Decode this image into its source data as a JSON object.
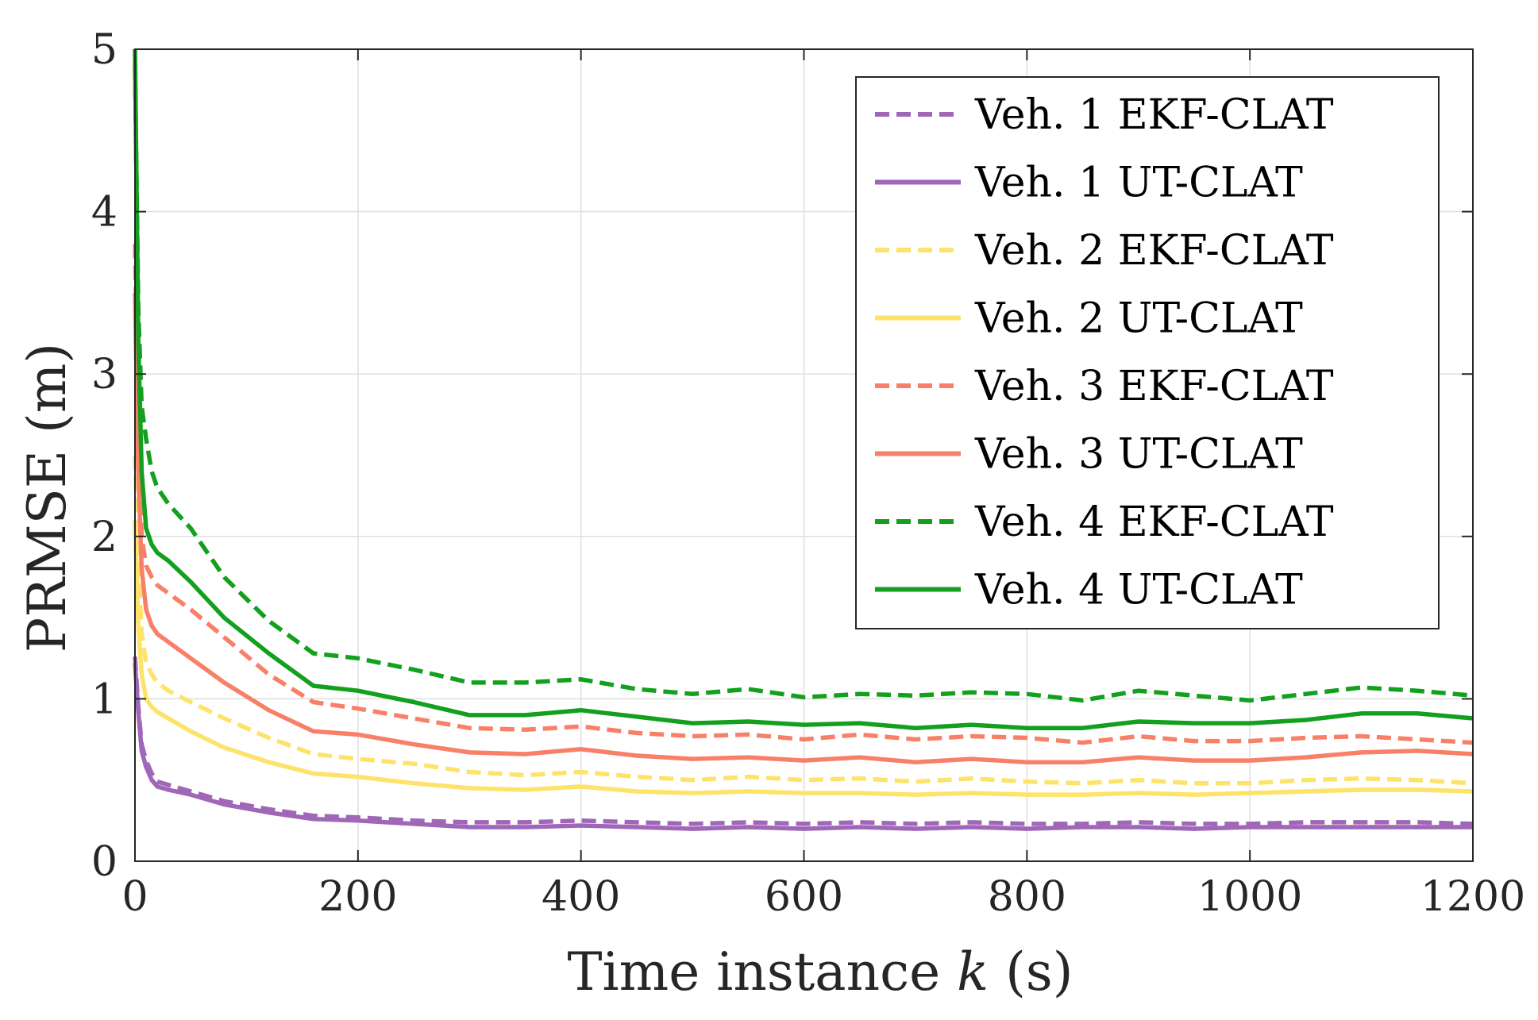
{
  "chart_data": {
    "type": "line",
    "title": "",
    "xlabel_parts": [
      "Time instance ",
      "k",
      " (s)"
    ],
    "ylabel": "PRMSE (m)",
    "xlim": [
      0,
      1200
    ],
    "ylim": [
      0,
      5
    ],
    "xticks": [
      0,
      200,
      400,
      600,
      800,
      1000,
      1200
    ],
    "xtick_labels": [
      "0",
      "200",
      "400",
      "600",
      "800",
      "1000",
      "1200"
    ],
    "yticks": [
      0,
      1,
      2,
      3,
      4,
      5
    ],
    "ytick_labels": [
      "0",
      "1",
      "2",
      "3",
      "4",
      "5"
    ],
    "grid": true,
    "legend_position": "top-right",
    "series": [
      {
        "name": "Veh. 1 EKF-CLAT",
        "color": "#a066b8",
        "dash": "dashed",
        "x": [
          0,
          3,
          6,
          10,
          15,
          20,
          30,
          50,
          80,
          120,
          160,
          200,
          250,
          300,
          350,
          400,
          450,
          500,
          550,
          600,
          650,
          700,
          750,
          800,
          850,
          900,
          950,
          1000,
          1050,
          1100,
          1150,
          1200
        ],
        "y": [
          1.26,
          0.95,
          0.72,
          0.62,
          0.54,
          0.49,
          0.47,
          0.43,
          0.37,
          0.32,
          0.28,
          0.27,
          0.25,
          0.24,
          0.24,
          0.25,
          0.24,
          0.23,
          0.24,
          0.23,
          0.24,
          0.23,
          0.24,
          0.23,
          0.23,
          0.24,
          0.23,
          0.23,
          0.24,
          0.24,
          0.24,
          0.23
        ]
      },
      {
        "name": "Veh. 1 UT-CLAT",
        "color": "#a066b8",
        "dash": "solid",
        "x": [
          0,
          3,
          6,
          10,
          15,
          20,
          30,
          50,
          80,
          120,
          160,
          200,
          250,
          300,
          350,
          400,
          450,
          500,
          550,
          600,
          650,
          700,
          750,
          800,
          850,
          900,
          950,
          1000,
          1050,
          1100,
          1150,
          1200
        ],
        "y": [
          1.22,
          0.92,
          0.68,
          0.58,
          0.5,
          0.46,
          0.44,
          0.41,
          0.35,
          0.3,
          0.26,
          0.25,
          0.23,
          0.21,
          0.21,
          0.22,
          0.21,
          0.2,
          0.21,
          0.2,
          0.21,
          0.2,
          0.21,
          0.2,
          0.21,
          0.21,
          0.2,
          0.21,
          0.21,
          0.21,
          0.21,
          0.21
        ]
      },
      {
        "name": "Veh. 2 EKF-CLAT",
        "color": "#fde36a",
        "dash": "dashed",
        "x": [
          0,
          3,
          6,
          10,
          15,
          20,
          30,
          50,
          80,
          120,
          160,
          200,
          250,
          300,
          350,
          400,
          450,
          500,
          550,
          600,
          650,
          700,
          750,
          800,
          850,
          900,
          950,
          1000,
          1050,
          1100,
          1150,
          1200
        ],
        "y": [
          2.5,
          1.85,
          1.4,
          1.22,
          1.15,
          1.1,
          1.05,
          0.98,
          0.88,
          0.76,
          0.66,
          0.63,
          0.6,
          0.55,
          0.53,
          0.55,
          0.52,
          0.5,
          0.52,
          0.5,
          0.51,
          0.49,
          0.51,
          0.49,
          0.48,
          0.5,
          0.48,
          0.48,
          0.5,
          0.51,
          0.5,
          0.48
        ]
      },
      {
        "name": "Veh. 2 UT-CLAT",
        "color": "#fde36a",
        "dash": "solid",
        "x": [
          0,
          3,
          6,
          10,
          15,
          20,
          30,
          50,
          80,
          120,
          160,
          200,
          250,
          300,
          350,
          400,
          450,
          500,
          550,
          600,
          650,
          700,
          750,
          800,
          850,
          900,
          950,
          1000,
          1050,
          1100,
          1150,
          1200
        ],
        "y": [
          2.1,
          1.45,
          1.15,
          1.0,
          0.95,
          0.92,
          0.88,
          0.8,
          0.7,
          0.61,
          0.54,
          0.52,
          0.48,
          0.45,
          0.44,
          0.46,
          0.43,
          0.42,
          0.43,
          0.42,
          0.42,
          0.41,
          0.42,
          0.41,
          0.41,
          0.42,
          0.41,
          0.42,
          0.43,
          0.44,
          0.44,
          0.43
        ]
      },
      {
        "name": "Veh. 3 EKF-CLAT",
        "color": "#f98068",
        "dash": "dashed",
        "x": [
          0,
          3,
          6,
          10,
          15,
          20,
          30,
          50,
          80,
          120,
          160,
          200,
          250,
          300,
          350,
          400,
          450,
          500,
          550,
          600,
          650,
          700,
          750,
          800,
          850,
          900,
          950,
          1000,
          1050,
          1100,
          1150,
          1200
        ],
        "y": [
          3.8,
          2.6,
          2.0,
          1.82,
          1.75,
          1.7,
          1.65,
          1.55,
          1.38,
          1.15,
          0.98,
          0.94,
          0.88,
          0.82,
          0.81,
          0.83,
          0.79,
          0.77,
          0.78,
          0.75,
          0.78,
          0.75,
          0.77,
          0.76,
          0.73,
          0.77,
          0.74,
          0.74,
          0.76,
          0.77,
          0.75,
          0.73
        ]
      },
      {
        "name": "Veh. 3 UT-CLAT",
        "color": "#f98068",
        "dash": "solid",
        "x": [
          0,
          3,
          6,
          10,
          15,
          20,
          30,
          50,
          80,
          120,
          160,
          200,
          250,
          300,
          350,
          400,
          450,
          500,
          550,
          600,
          650,
          700,
          750,
          800,
          850,
          900,
          950,
          1000,
          1050,
          1100,
          1150,
          1200
        ],
        "y": [
          3.5,
          2.4,
          1.8,
          1.55,
          1.45,
          1.4,
          1.35,
          1.25,
          1.1,
          0.93,
          0.8,
          0.78,
          0.72,
          0.67,
          0.66,
          0.69,
          0.65,
          0.63,
          0.64,
          0.62,
          0.64,
          0.61,
          0.63,
          0.61,
          0.61,
          0.64,
          0.62,
          0.62,
          0.64,
          0.67,
          0.68,
          0.66
        ]
      },
      {
        "name": "Veh. 4 EKF-CLAT",
        "color": "#13a01e",
        "dash": "dashed",
        "x": [
          0,
          3,
          6,
          10,
          15,
          20,
          30,
          50,
          80,
          120,
          160,
          200,
          250,
          300,
          350,
          400,
          450,
          500,
          550,
          600,
          650,
          700,
          750,
          800,
          850,
          900,
          950,
          1000,
          1050,
          1100,
          1150,
          1200
        ],
        "y": [
          4.9,
          3.4,
          2.8,
          2.6,
          2.4,
          2.3,
          2.2,
          2.05,
          1.75,
          1.48,
          1.28,
          1.25,
          1.18,
          1.1,
          1.1,
          1.12,
          1.06,
          1.03,
          1.06,
          1.01,
          1.03,
          1.02,
          1.04,
          1.03,
          0.99,
          1.05,
          1.02,
          0.99,
          1.03,
          1.07,
          1.05,
          1.02
        ]
      },
      {
        "name": "Veh. 4 UT-CLAT",
        "color": "#13a01e",
        "dash": "solid",
        "x": [
          0,
          3,
          6,
          10,
          15,
          20,
          30,
          50,
          80,
          120,
          160,
          200,
          250,
          300,
          350,
          400,
          450,
          500,
          550,
          600,
          650,
          700,
          750,
          800,
          850,
          900,
          950,
          1000,
          1050,
          1100,
          1150,
          1200
        ],
        "y": [
          5.0,
          3.2,
          2.4,
          2.05,
          1.95,
          1.9,
          1.85,
          1.72,
          1.5,
          1.28,
          1.08,
          1.05,
          0.98,
          0.9,
          0.9,
          0.93,
          0.89,
          0.85,
          0.86,
          0.84,
          0.85,
          0.82,
          0.84,
          0.82,
          0.82,
          0.86,
          0.85,
          0.85,
          0.87,
          0.91,
          0.91,
          0.88
        ]
      }
    ]
  }
}
